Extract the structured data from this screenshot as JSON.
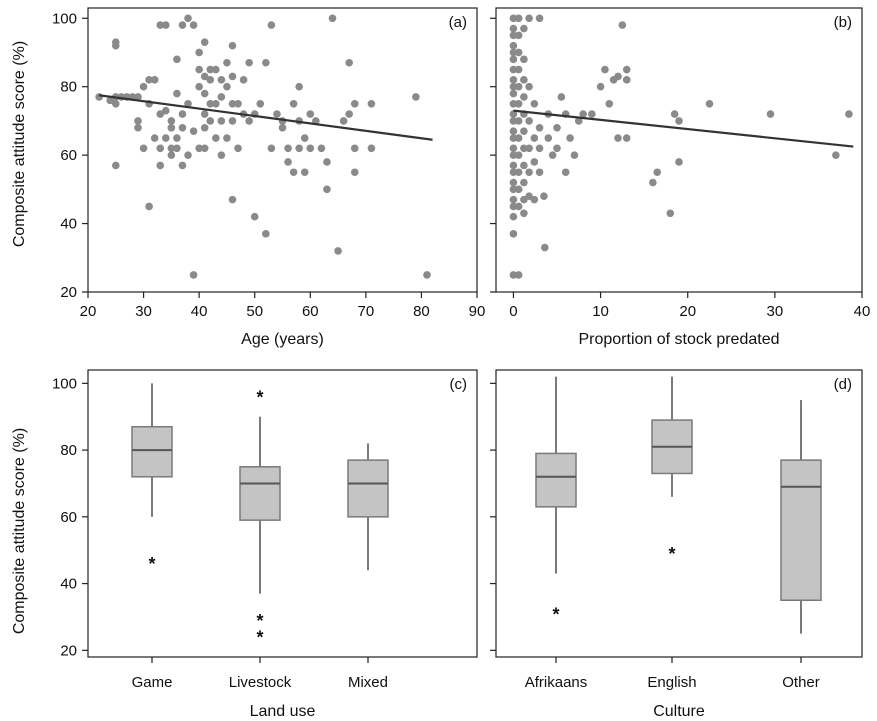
{
  "figure": {
    "colors": {
      "marker": "#8a8a8a",
      "box_fill": "#c4c4c4",
      "box_stroke": "#7a7a7a",
      "line": "#333333",
      "axis": "#222222"
    }
  },
  "chart_data": [
    {
      "id": "a",
      "panel_label": "(a)",
      "type": "scatter",
      "xlabel": "Age (years)",
      "ylabel": "Composite attitude score (%)",
      "xlim": [
        20,
        90
      ],
      "ylim": [
        20,
        103
      ],
      "xticks": [
        20,
        30,
        40,
        50,
        60,
        70,
        80,
        90
      ],
      "yticks": [
        20,
        40,
        60,
        80,
        100
      ],
      "points": [
        [
          22,
          77
        ],
        [
          24,
          76
        ],
        [
          25,
          77
        ],
        [
          25,
          75
        ],
        [
          25,
          57
        ],
        [
          25,
          93
        ],
        [
          25,
          92
        ],
        [
          26,
          77
        ],
        [
          27,
          77
        ],
        [
          28,
          77
        ],
        [
          29,
          77
        ],
        [
          29,
          70
        ],
        [
          29,
          68
        ],
        [
          30,
          62
        ],
        [
          30,
          80
        ],
        [
          31,
          82
        ],
        [
          31,
          75
        ],
        [
          31,
          45
        ],
        [
          32,
          82
        ],
        [
          32,
          65
        ],
        [
          33,
          98
        ],
        [
          33,
          72
        ],
        [
          33,
          62
        ],
        [
          33,
          57
        ],
        [
          34,
          98
        ],
        [
          34,
          73
        ],
        [
          34,
          65
        ],
        [
          35,
          70
        ],
        [
          35,
          68
        ],
        [
          35,
          62
        ],
        [
          35,
          60
        ],
        [
          36,
          88
        ],
        [
          36,
          78
        ],
        [
          36,
          65
        ],
        [
          36,
          62
        ],
        [
          37,
          98
        ],
        [
          37,
          72
        ],
        [
          37,
          68
        ],
        [
          37,
          57
        ],
        [
          38,
          100
        ],
        [
          38,
          75
        ],
        [
          38,
          60
        ],
        [
          39,
          98
        ],
        [
          39,
          67
        ],
        [
          39,
          25
        ],
        [
          40,
          90
        ],
        [
          40,
          85
        ],
        [
          40,
          80
        ],
        [
          40,
          62
        ],
        [
          41,
          93
        ],
        [
          41,
          83
        ],
        [
          41,
          78
        ],
        [
          41,
          72
        ],
        [
          41,
          68
        ],
        [
          41,
          62
        ],
        [
          42,
          85
        ],
        [
          42,
          82
        ],
        [
          42,
          75
        ],
        [
          42,
          70
        ],
        [
          43,
          85
        ],
        [
          43,
          75
        ],
        [
          43,
          65
        ],
        [
          44,
          82
        ],
        [
          44,
          77
        ],
        [
          44,
          70
        ],
        [
          44,
          60
        ],
        [
          45,
          87
        ],
        [
          45,
          80
        ],
        [
          45,
          65
        ],
        [
          46,
          92
        ],
        [
          46,
          83
        ],
        [
          46,
          75
        ],
        [
          46,
          70
        ],
        [
          46,
          47
        ],
        [
          47,
          75
        ],
        [
          47,
          62
        ],
        [
          48,
          82
        ],
        [
          48,
          72
        ],
        [
          49,
          87
        ],
        [
          49,
          70
        ],
        [
          50,
          72
        ],
        [
          50,
          42
        ],
        [
          51,
          75
        ],
        [
          52,
          87
        ],
        [
          52,
          37
        ],
        [
          53,
          62
        ],
        [
          53,
          98
        ],
        [
          54,
          72
        ],
        [
          55,
          70
        ],
        [
          55,
          68
        ],
        [
          56,
          62
        ],
        [
          56,
          58
        ],
        [
          57,
          75
        ],
        [
          57,
          55
        ],
        [
          58,
          70
        ],
        [
          58,
          62
        ],
        [
          58,
          80
        ],
        [
          59,
          55
        ],
        [
          59,
          65
        ],
        [
          60,
          72
        ],
        [
          60,
          62
        ],
        [
          61,
          70
        ],
        [
          62,
          62
        ],
        [
          63,
          50
        ],
        [
          63,
          58
        ],
        [
          64,
          100
        ],
        [
          65,
          32
        ],
        [
          66,
          70
        ],
        [
          67,
          87
        ],
        [
          67,
          72
        ],
        [
          68,
          75
        ],
        [
          68,
          62
        ],
        [
          68,
          55
        ],
        [
          71,
          75
        ],
        [
          71,
          62
        ],
        [
          79,
          77
        ],
        [
          81,
          25
        ]
      ],
      "trend": {
        "x": [
          22,
          82
        ],
        "y": [
          77.5,
          64.5
        ]
      }
    },
    {
      "id": "b",
      "panel_label": "(b)",
      "type": "scatter",
      "xlabel": "Proportion of stock predated",
      "ylabel": "",
      "xlim": [
        -2,
        40
      ],
      "ylim": [
        20,
        103
      ],
      "xticks": [
        0,
        10,
        20,
        30,
        40
      ],
      "yticks": [
        20,
        40,
        60,
        80,
        100
      ],
      "points": [
        [
          0,
          100
        ],
        [
          0,
          97
        ],
        [
          0,
          95
        ],
        [
          0,
          92
        ],
        [
          0,
          90
        ],
        [
          0,
          88
        ],
        [
          0,
          85
        ],
        [
          0,
          82
        ],
        [
          0,
          80
        ],
        [
          0,
          78
        ],
        [
          0,
          75
        ],
        [
          0,
          72
        ],
        [
          0,
          70
        ],
        [
          0,
          67
        ],
        [
          0,
          65
        ],
        [
          0,
          62
        ],
        [
          0,
          60
        ],
        [
          0,
          57
        ],
        [
          0,
          55
        ],
        [
          0,
          52
        ],
        [
          0,
          50
        ],
        [
          0,
          47
        ],
        [
          0,
          45
        ],
        [
          0,
          42
        ],
        [
          0,
          37
        ],
        [
          0,
          25
        ],
        [
          0.6,
          100
        ],
        [
          0.6,
          95
        ],
        [
          0.6,
          90
        ],
        [
          0.6,
          85
        ],
        [
          0.6,
          80
        ],
        [
          0.6,
          75
        ],
        [
          0.6,
          70
        ],
        [
          0.6,
          65
        ],
        [
          0.6,
          60
        ],
        [
          0.6,
          55
        ],
        [
          0.6,
          50
        ],
        [
          0.6,
          45
        ],
        [
          0.6,
          25
        ],
        [
          1.2,
          97
        ],
        [
          1.2,
          88
        ],
        [
          1.2,
          82
        ],
        [
          1.2,
          77
        ],
        [
          1.2,
          72
        ],
        [
          1.2,
          67
        ],
        [
          1.2,
          62
        ],
        [
          1.2,
          57
        ],
        [
          1.2,
          52
        ],
        [
          1.2,
          47
        ],
        [
          1.2,
          43
        ],
        [
          1.8,
          100
        ],
        [
          1.8,
          80
        ],
        [
          1.8,
          70
        ],
        [
          1.8,
          62
        ],
        [
          1.8,
          55
        ],
        [
          1.8,
          48
        ],
        [
          2.4,
          75
        ],
        [
          2.4,
          65
        ],
        [
          2.4,
          58
        ],
        [
          2.4,
          47
        ],
        [
          3,
          100
        ],
        [
          3,
          68
        ],
        [
          3,
          62
        ],
        [
          3,
          55
        ],
        [
          3.5,
          48
        ],
        [
          3.6,
          33
        ],
        [
          4,
          72
        ],
        [
          4,
          65
        ],
        [
          4.5,
          60
        ],
        [
          5,
          68
        ],
        [
          5,
          62
        ],
        [
          5.5,
          77
        ],
        [
          6,
          72
        ],
        [
          6,
          55
        ],
        [
          6.5,
          65
        ],
        [
          7,
          60
        ],
        [
          7.5,
          70
        ],
        [
          8,
          72
        ],
        [
          9,
          72
        ],
        [
          10,
          80
        ],
        [
          10.5,
          85
        ],
        [
          11,
          75
        ],
        [
          11.5,
          82
        ],
        [
          12,
          83
        ],
        [
          12,
          65
        ],
        [
          12.5,
          98
        ],
        [
          13,
          85
        ],
        [
          13,
          82
        ],
        [
          13,
          65
        ],
        [
          16,
          52
        ],
        [
          16.5,
          55
        ],
        [
          18,
          43
        ],
        [
          18.5,
          72
        ],
        [
          19,
          70
        ],
        [
          19,
          58
        ],
        [
          22.5,
          75
        ],
        [
          29.5,
          72
        ],
        [
          37,
          60
        ],
        [
          38.5,
          72
        ]
      ],
      "trend": {
        "x": [
          0,
          39
        ],
        "y": [
          73,
          62.5
        ]
      }
    },
    {
      "id": "c",
      "panel_label": "(c)",
      "type": "box",
      "xlabel": "Land use",
      "ylabel": "Composite attitude score (%)",
      "ylim": [
        18,
        104
      ],
      "yticks": [
        20,
        40,
        60,
        80,
        100
      ],
      "categories": [
        "Game",
        "Livestock",
        "Mixed"
      ],
      "boxes": [
        {
          "min": 60,
          "q1": 72,
          "median": 80,
          "q3": 87,
          "max": 100
        },
        {
          "min": 37,
          "q1": 59,
          "median": 70,
          "q3": 75,
          "max": 90
        },
        {
          "min": 44,
          "q1": 60,
          "median": 70,
          "q3": 77,
          "max": 82
        }
      ],
      "outliers": [
        {
          "category": 0,
          "value": 47
        },
        {
          "category": 1,
          "value": 97
        },
        {
          "category": 1,
          "value": 30
        },
        {
          "category": 1,
          "value": 25
        }
      ]
    },
    {
      "id": "d",
      "panel_label": "(d)",
      "type": "box",
      "xlabel": "Culture",
      "ylabel": "",
      "ylim": [
        18,
        104
      ],
      "yticks": [
        20,
        40,
        60,
        80,
        100
      ],
      "categories": [
        "Afrikaans",
        "English",
        "Other"
      ],
      "boxes": [
        {
          "min": 43,
          "q1": 63,
          "median": 72,
          "q3": 79,
          "max": 102
        },
        {
          "min": 66,
          "q1": 73,
          "median": 81,
          "q3": 89,
          "max": 102
        },
        {
          "min": 25,
          "q1": 35,
          "median": 69,
          "q3": 77,
          "max": 95
        }
      ],
      "outliers": [
        {
          "category": 0,
          "value": 32
        },
        {
          "category": 1,
          "value": 50
        }
      ]
    }
  ]
}
